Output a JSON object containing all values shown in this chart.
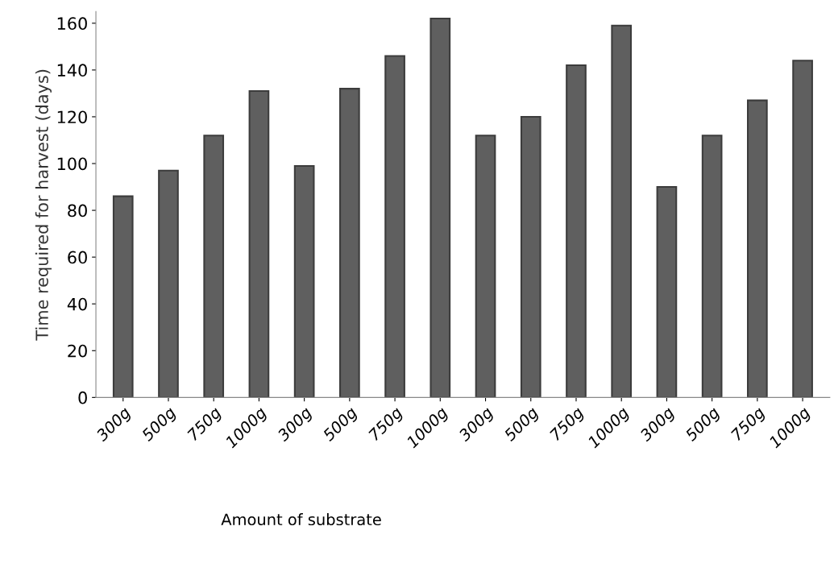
{
  "chart_data": {
    "type": "bar",
    "xlabel": "Amount of substrate",
    "ylabel": "Time required for harvest (days)",
    "categories": [
      "300g",
      "500g",
      "750g",
      "1000g",
      "300g",
      "500g",
      "750g",
      "1000g",
      "300g",
      "500g",
      "750g",
      "1000g",
      "300g",
      "500g",
      "750g",
      "1000g"
    ],
    "values": [
      86,
      97,
      112,
      131,
      99,
      132,
      146,
      162,
      112,
      120,
      142,
      159,
      90,
      112,
      127,
      144
    ],
    "color": "#5f5f5f",
    "ylim": [
      0,
      165
    ],
    "yticks": [
      0,
      20,
      40,
      60,
      80,
      100,
      120,
      140,
      160
    ],
    "grid": false
  }
}
